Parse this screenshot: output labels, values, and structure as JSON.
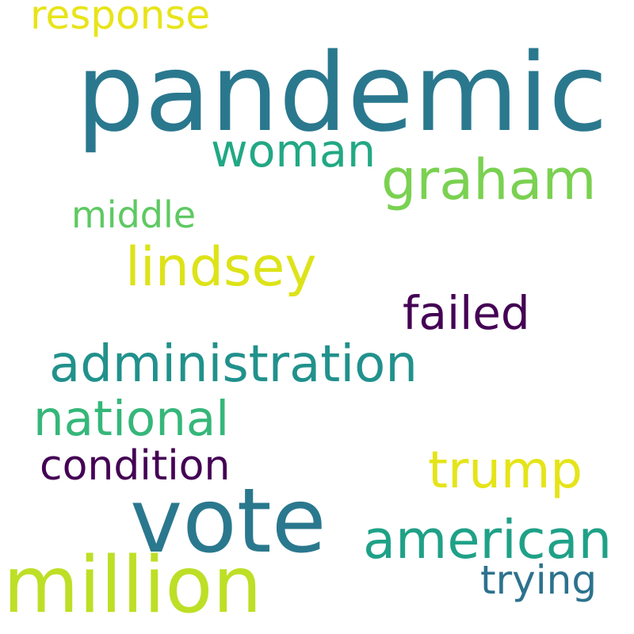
{
  "words": [
    {
      "text": "response",
      "color": "#e8e419"
    },
    {
      "text": "pandemic",
      "color": "#2a788e"
    },
    {
      "text": "woman",
      "color": "#22a884"
    },
    {
      "text": "graham",
      "color": "#7ad151"
    },
    {
      "text": "middle",
      "color": "#5ec962"
    },
    {
      "text": "lindsey",
      "color": "#dde318"
    },
    {
      "text": "failed",
      "color": "#440154"
    },
    {
      "text": "administration",
      "color": "#21918c"
    },
    {
      "text": "national",
      "color": "#35b779"
    },
    {
      "text": "condition",
      "color": "#440154"
    },
    {
      "text": "trump",
      "color": "#e5e419"
    },
    {
      "text": "vote",
      "color": "#2a788e"
    },
    {
      "text": "american",
      "color": "#1fa187"
    },
    {
      "text": "million",
      "color": "#bddf26"
    },
    {
      "text": "trying",
      "color": "#2c728e"
    }
  ]
}
